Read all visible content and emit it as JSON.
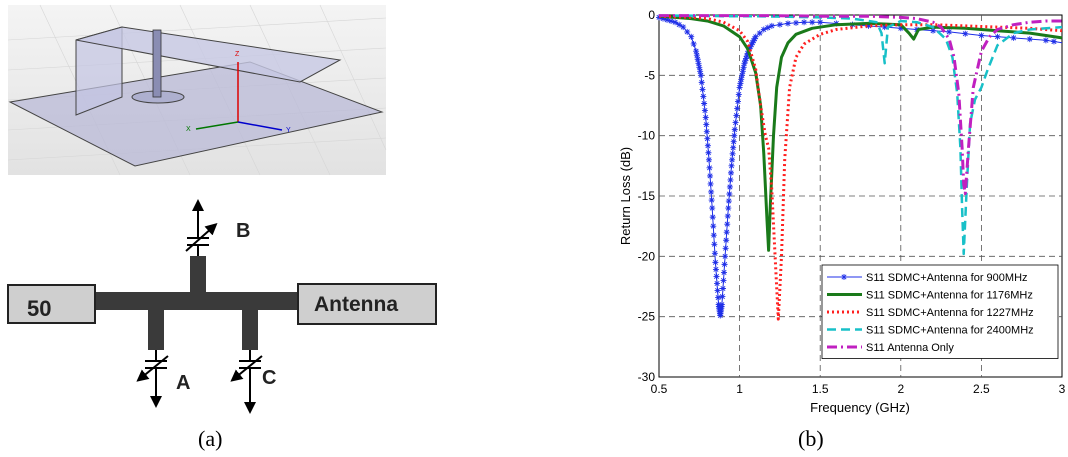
{
  "captions": {
    "a": "(a)",
    "b": "(b)"
  },
  "model3d": {
    "axis_z": "Z",
    "axis_x": "X",
    "axis_y": "Y"
  },
  "circuit": {
    "port_label": "50",
    "antenna_label": "Antenna",
    "tuner_a": "A",
    "tuner_b": "B",
    "tuner_c": "C"
  },
  "colors": {
    "blue": "#1f2fe8",
    "green": "#1a7a1a",
    "red": "#ff2020",
    "cyan": "#18c0c8",
    "magenta": "#c020c0"
  },
  "chart_data": {
    "type": "line",
    "xlabel": "Frequency (GHz)",
    "ylabel": "Return Loss (dB)",
    "xlim": [
      0.5,
      3
    ],
    "ylim": [
      -30,
      0
    ],
    "xticks": [
      0.5,
      1,
      1.5,
      2,
      2.5,
      3
    ],
    "xtick_labels": [
      "0.5",
      "1",
      "1.5",
      "2",
      "2.5",
      "3"
    ],
    "yticks": [
      0,
      -5,
      -10,
      -15,
      -20,
      -25,
      -30
    ],
    "ytick_labels": [
      "0",
      "-5",
      "-10",
      "-15",
      "-20",
      "-25",
      "-30"
    ],
    "grid": true,
    "legend_position": "bottom-right",
    "series": [
      {
        "name": "S11 SDMC+Antenna for 900MHz",
        "color_key": "blue",
        "style": "solid-star",
        "x": [
          0.5,
          0.55,
          0.6,
          0.65,
          0.7,
          0.73,
          0.76,
          0.79,
          0.81,
          0.83,
          0.85,
          0.87,
          0.88,
          0.89,
          0.91,
          0.93,
          0.95,
          0.97,
          1.0,
          1.03,
          1.06,
          1.1,
          1.15,
          1.2,
          1.3,
          1.4,
          1.5,
          1.7,
          1.9,
          2.1,
          2.3,
          2.5,
          2.7,
          2.9,
          3.0
        ],
        "y": [
          -0.2,
          -0.4,
          -0.6,
          -1.0,
          -1.8,
          -3.0,
          -5.0,
          -8.5,
          -12.0,
          -16.0,
          -20.5,
          -24.0,
          -24.9,
          -24.0,
          -20.0,
          -16.0,
          -12.5,
          -9.5,
          -6.0,
          -4.0,
          -2.8,
          -1.8,
          -1.2,
          -0.9,
          -0.7,
          -0.6,
          -0.6,
          -0.8,
          -1.0,
          -1.2,
          -1.4,
          -1.7,
          -1.9,
          -2.1,
          -2.3
        ]
      },
      {
        "name": "S11 SDMC+Antenna for 1176MHz",
        "color_key": "green",
        "style": "solid-thick",
        "x": [
          0.5,
          0.6,
          0.7,
          0.8,
          0.9,
          1.0,
          1.05,
          1.1,
          1.13,
          1.15,
          1.17,
          1.18,
          1.19,
          1.21,
          1.23,
          1.26,
          1.3,
          1.35,
          1.45,
          1.6,
          1.8,
          2.0,
          2.05,
          2.08,
          2.11,
          2.2,
          2.4,
          2.6,
          2.8,
          3.0
        ],
        "y": [
          -0.1,
          -0.2,
          -0.3,
          -0.5,
          -0.9,
          -1.8,
          -2.8,
          -4.8,
          -7.5,
          -11.5,
          -17.0,
          -19.5,
          -16.0,
          -10.0,
          -6.0,
          -3.5,
          -2.3,
          -1.6,
          -1.1,
          -0.8,
          -0.7,
          -0.8,
          -1.5,
          -2.0,
          -1.2,
          -1.0,
          -1.1,
          -1.3,
          -1.5,
          -1.9
        ]
      },
      {
        "name": "S11 SDMC+Antenna for 1227MHz",
        "color_key": "red",
        "style": "dotted",
        "x": [
          0.5,
          0.6,
          0.7,
          0.8,
          0.9,
          1.0,
          1.05,
          1.1,
          1.13,
          1.16,
          1.18,
          1.2,
          1.22,
          1.24,
          1.26,
          1.28,
          1.31,
          1.35,
          1.4,
          1.5,
          1.6,
          1.8,
          2.0,
          2.2,
          2.4,
          2.6,
          2.8,
          3.0
        ],
        "y": [
          -0.1,
          -0.15,
          -0.2,
          -0.3,
          -0.6,
          -1.3,
          -2.2,
          -4.5,
          -7.5,
          -10.0,
          -11.0,
          -14.5,
          -20.0,
          -25.2,
          -20.0,
          -12.0,
          -6.0,
          -3.5,
          -2.4,
          -1.6,
          -1.2,
          -0.9,
          -0.8,
          -0.8,
          -0.9,
          -1.0,
          -1.1,
          -1.3
        ]
      },
      {
        "name": "S11 SDMC+Antenna for 2400MHz",
        "color_key": "cyan",
        "style": "dashed",
        "x": [
          0.5,
          0.7,
          0.9,
          1.1,
          1.3,
          1.5,
          1.7,
          1.85,
          1.88,
          1.9,
          1.92,
          2.0,
          2.1,
          2.2,
          2.28,
          2.32,
          2.35,
          2.37,
          2.38,
          2.39,
          2.41,
          2.43,
          2.46,
          2.5,
          2.54,
          2.6,
          2.7,
          2.8,
          3.0
        ],
        "y": [
          -0.05,
          -0.05,
          -0.1,
          -0.1,
          -0.15,
          -0.2,
          -0.3,
          -0.6,
          -1.5,
          -4.0,
          -1.0,
          -0.5,
          -0.6,
          -1.0,
          -2.0,
          -3.5,
          -6.5,
          -11.0,
          -16.0,
          -19.8,
          -14.0,
          -9.0,
          -7.0,
          -6.0,
          -4.5,
          -2.5,
          -1.5,
          -1.2,
          -1.0
        ]
      },
      {
        "name": "S11 Antenna Only",
        "color_key": "magenta",
        "style": "dash-dot",
        "x": [
          0.5,
          0.8,
          1.0,
          1.2,
          1.5,
          1.8,
          2.0,
          2.1,
          2.2,
          2.25,
          2.3,
          2.33,
          2.36,
          2.38,
          2.39,
          2.4,
          2.42,
          2.45,
          2.5,
          2.55,
          2.6,
          2.7,
          2.8,
          2.9,
          3.0
        ],
        "y": [
          -0.05,
          -0.05,
          -0.05,
          -0.05,
          -0.1,
          -0.1,
          -0.2,
          -0.3,
          -0.6,
          -1.0,
          -2.0,
          -3.5,
          -6.5,
          -11.0,
          -14.0,
          -14.8,
          -11.0,
          -6.0,
          -3.0,
          -1.8,
          -1.2,
          -0.8,
          -0.6,
          -0.5,
          -0.5
        ]
      }
    ]
  }
}
